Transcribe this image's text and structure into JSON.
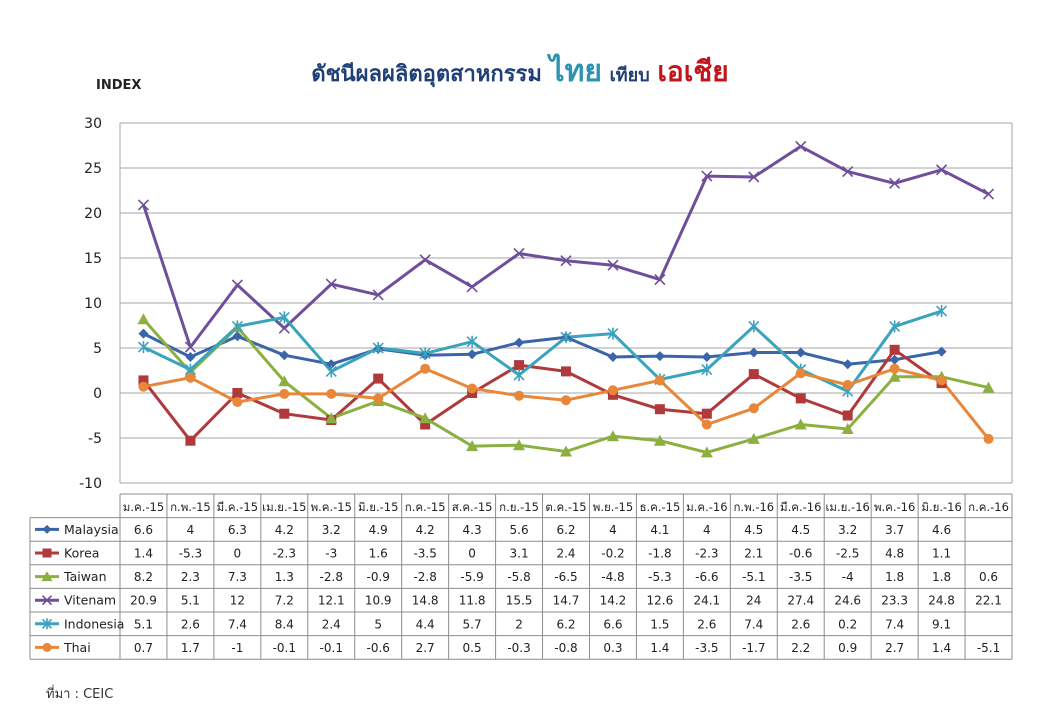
{
  "title": {
    "part1": "ดัชนีผลผลิตอุตสาหกรรม",
    "part2": "ไทย",
    "part3": "เทียบ",
    "part4": "เอเชีย"
  },
  "source": "ที่มา : CEIC",
  "colors": {
    "Malaysia": "#3a65a8",
    "Korea": "#b0393b",
    "Taiwan": "#8bb040",
    "Vitenam": "#6f4e9a",
    "Indonesia": "#3aa3be",
    "Thai": "#e8863a"
  },
  "chart_data": {
    "type": "line",
    "ylabel": "INDEX",
    "ylim": [
      -10,
      30
    ],
    "yticks": [
      -10,
      -5,
      0,
      5,
      10,
      15,
      20,
      25,
      30
    ],
    "grid": true,
    "categories": [
      "ม.ค.-15",
      "ก.พ.-15",
      "มี.ค.-15",
      "เม.ย.-15",
      "พ.ค.-15",
      "มิ.ย.-15",
      "ก.ค.-15",
      "ส.ค.-15",
      "ก.ย.-15",
      "ต.ค.-15",
      "พ.ย.-15",
      "ธ.ค.-15",
      "ม.ค.-16",
      "ก.พ.-16",
      "มี.ค.-16",
      "เม.ย.-16",
      "พ.ค.-16",
      "มิ.ย.-16",
      "ก.ค.-16"
    ],
    "series": [
      {
        "name": "Malaysia",
        "marker": "diamond",
        "values": [
          6.6,
          4,
          6.3,
          4.2,
          3.2,
          4.9,
          4.2,
          4.3,
          5.6,
          6.2,
          4,
          4.1,
          4,
          4.5,
          4.5,
          3.2,
          3.7,
          4.6,
          null
        ]
      },
      {
        "name": "Korea",
        "marker": "square",
        "values": [
          1.4,
          -5.3,
          0,
          -2.3,
          -3,
          1.6,
          -3.5,
          0,
          3.1,
          2.4,
          -0.2,
          -1.8,
          -2.3,
          2.1,
          -0.6,
          -2.5,
          4.8,
          1.1,
          null
        ]
      },
      {
        "name": "Taiwan",
        "marker": "triangle",
        "values": [
          8.2,
          2.3,
          7.3,
          1.3,
          -2.8,
          -0.9,
          -2.8,
          -5.9,
          -5.8,
          -6.5,
          -4.8,
          -5.3,
          -6.6,
          -5.1,
          -3.5,
          -4,
          1.8,
          1.8,
          0.6
        ]
      },
      {
        "name": "Vitenam",
        "marker": "x",
        "values": [
          20.9,
          5.1,
          12,
          7.2,
          12.1,
          10.9,
          14.8,
          11.8,
          15.5,
          14.7,
          14.2,
          12.6,
          24.1,
          24,
          27.4,
          24.6,
          23.3,
          24.8,
          22.1
        ]
      },
      {
        "name": "Indonesia",
        "marker": "star",
        "values": [
          5.1,
          2.6,
          7.4,
          8.4,
          2.4,
          5,
          4.4,
          5.7,
          2,
          6.2,
          6.6,
          1.5,
          2.6,
          7.4,
          2.6,
          0.2,
          7.4,
          9.1,
          null
        ]
      },
      {
        "name": "Thai",
        "marker": "circle",
        "values": [
          0.7,
          1.7,
          -1,
          -0.1,
          -0.1,
          -0.6,
          2.7,
          0.5,
          -0.3,
          -0.8,
          0.3,
          1.4,
          -3.5,
          -1.7,
          2.2,
          0.9,
          2.7,
          1.4,
          -5.1
        ]
      }
    ],
    "table_labels": {
      "Malaysia": [
        "6.6",
        "4",
        "6.3",
        "4.2",
        "3.2",
        "4.9",
        "4.2",
        "4.3",
        "5.6",
        "6.2",
        "4",
        "4.1",
        "4",
        "4.5",
        "4.5",
        "3.2",
        "3.7",
        "4.6",
        ""
      ],
      "Korea": [
        "1.4",
        "-5.3",
        "0",
        "-2.3",
        "-3",
        "1.6",
        "-3.5",
        "0",
        "3.1",
        "2.4",
        "-0.2",
        "-1.8",
        "-2.3",
        "2.1",
        "-0.6",
        "-2.5",
        "4.8",
        "1.1",
        ""
      ],
      "Taiwan": [
        "8.2",
        "2.3",
        "7.3",
        "1.3",
        "-2.8",
        "-0.9",
        "-2.8",
        "-5.9",
        "-5.8",
        "-6.5",
        "-4.8",
        "-5.3",
        "-6.6",
        "-5.1",
        "-3.5",
        "-4",
        "1.8",
        "1.8",
        "0.6"
      ],
      "Vitenam": [
        "20.9",
        "5.1",
        "12",
        "7.2",
        "12.1",
        "10.9",
        "14.8",
        "11.8",
        "15.5",
        "14.7",
        "14.2",
        "12.6",
        "24.1",
        "24",
        "27.4",
        "24.6",
        "23.3",
        "24.8",
        "22.1"
      ],
      "Indonesia": [
        "5.1",
        "2.6",
        "7.4",
        "8.4",
        "2.4",
        "5",
        "4.4",
        "5.7",
        "2",
        "6.2",
        "6.6",
        "1.5",
        "2.6",
        "7.4",
        "2.6",
        "0.2",
        "7.4",
        "9.1",
        ""
      ],
      "Thai": [
        "0.7",
        "1.7",
        "-1",
        "-0.1",
        "-0.1",
        "-0.6",
        "2.7",
        "0.5",
        "-0.3",
        "-0.8",
        "0.3",
        "1.4",
        "-3.5",
        "-1.7",
        "2.2",
        "0.9",
        "2.7",
        "1.4",
        "-5.1"
      ]
    }
  }
}
